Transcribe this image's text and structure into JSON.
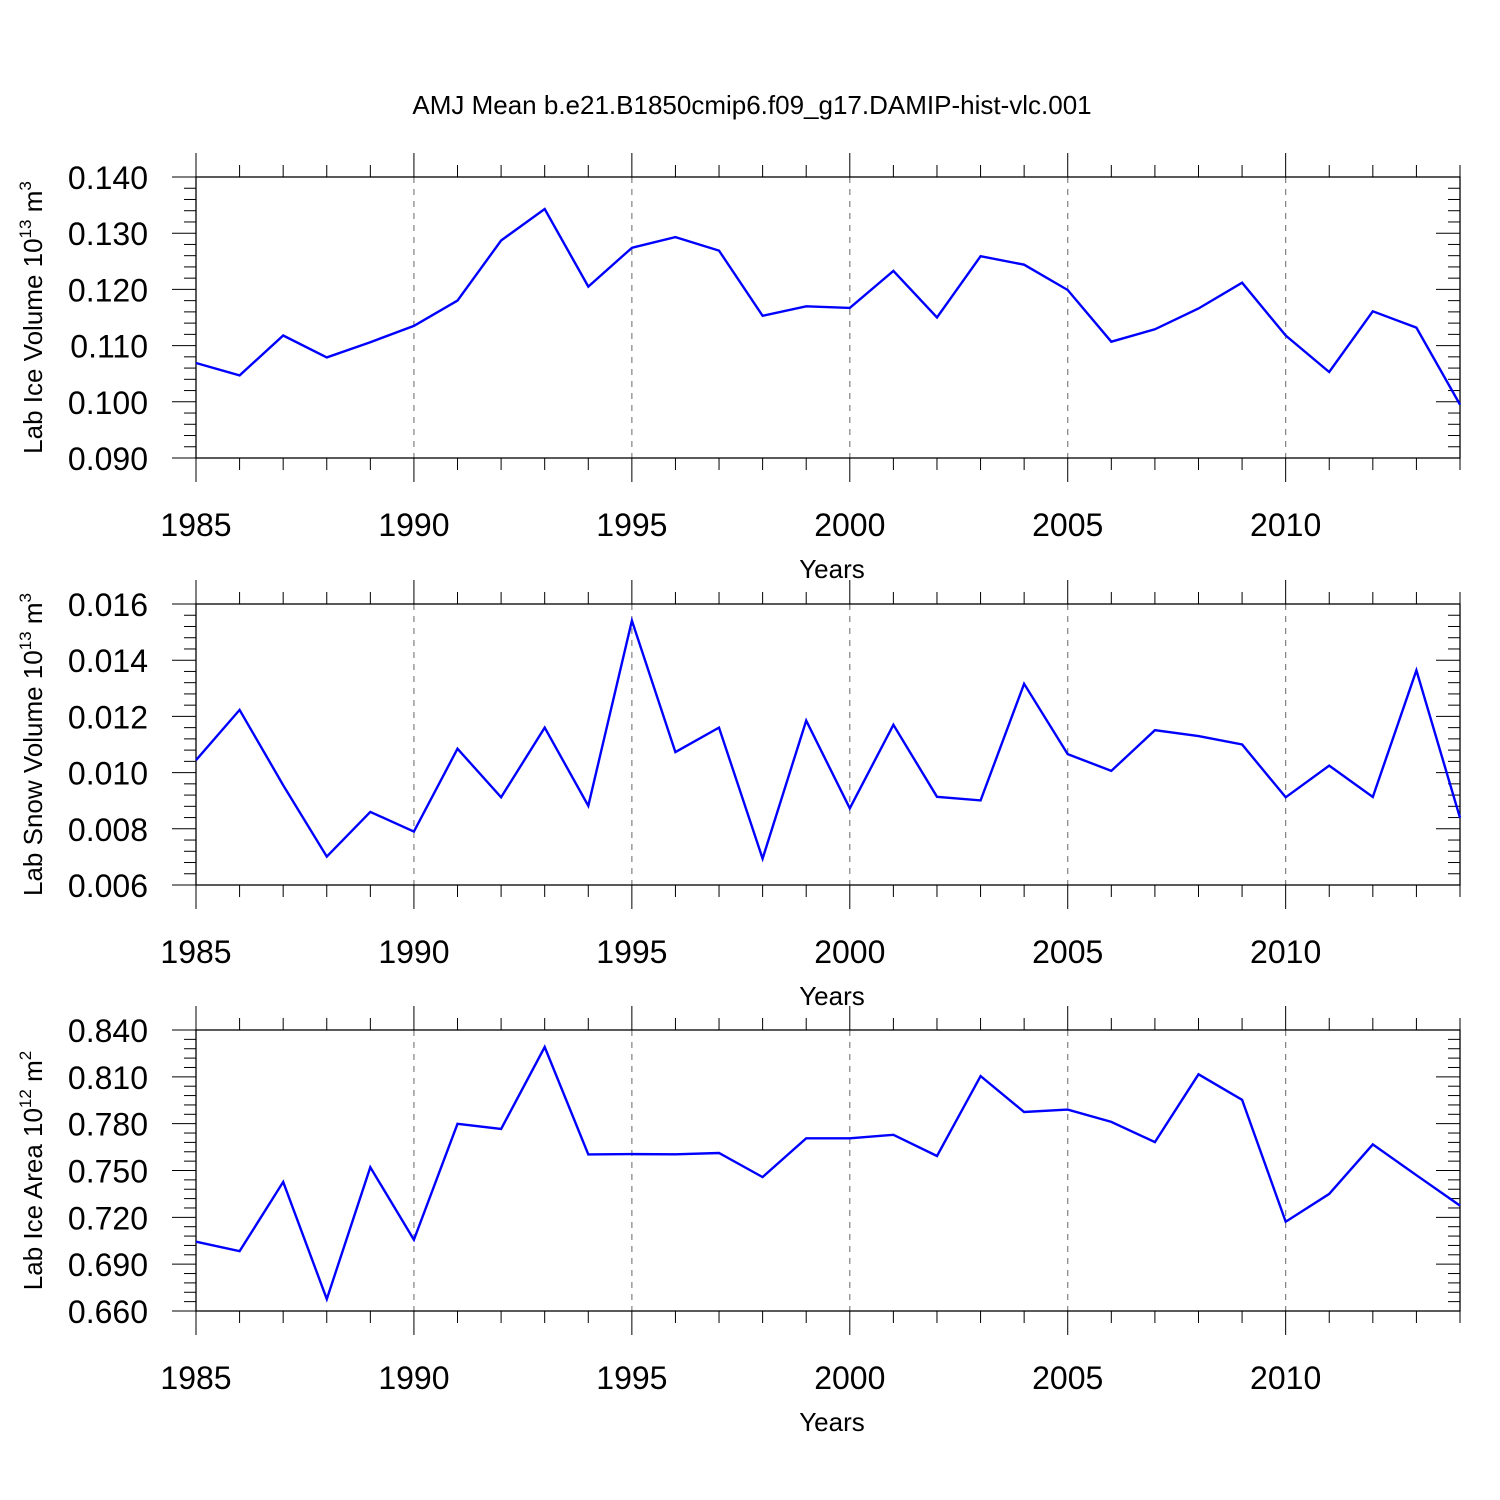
{
  "figure": {
    "title": "AMJ Mean b.e21.B1850cmip6.f09_g17.DAMIP-hist-vlc.001"
  },
  "colors": {
    "line": "#0000ff",
    "axis": "#000000",
    "grid": "#808080"
  },
  "chart_data": [
    {
      "type": "line",
      "ylabel": {
        "main": "Lab Ice Volume 10",
        "exp": "13",
        "unit": " m",
        "unit_exp": "3"
      },
      "xlabel": "Years",
      "xlim": [
        1985,
        2014
      ],
      "ylim": [
        0.09,
        0.14
      ],
      "x_ticks": [
        "1985",
        "1990",
        "1995",
        "2000",
        "2005",
        "2010"
      ],
      "y_ticks": [
        "0.090",
        "0.100",
        "0.110",
        "0.120",
        "0.130",
        "0.140"
      ],
      "x": [
        1985,
        1986,
        1987,
        1988,
        1989,
        1990,
        1991,
        1992,
        1993,
        1994,
        1995,
        1996,
        1997,
        1998,
        1999,
        2000,
        2001,
        2002,
        2003,
        2004,
        2005,
        2006,
        2007,
        2008,
        2009,
        2010,
        2011,
        2012,
        2013,
        2014
      ],
      "values": [
        0.1069,
        0.1047,
        0.1118,
        0.1079,
        0.1106,
        0.1135,
        0.118,
        0.1287,
        0.1343,
        0.1205,
        0.1274,
        0.1293,
        0.1269,
        0.1153,
        0.117,
        0.1167,
        0.1233,
        0.115,
        0.1259,
        0.1244,
        0.1199,
        0.1107,
        0.1129,
        0.1166,
        0.1212,
        0.1118,
        0.1053,
        0.1161,
        0.1132,
        0.0995
      ]
    },
    {
      "type": "line",
      "ylabel": {
        "main": "Lab Snow Volume 10",
        "exp": "13",
        "unit": " m",
        "unit_exp": "3"
      },
      "xlabel": "Years",
      "xlim": [
        1985,
        2014
      ],
      "ylim": [
        0.006,
        0.016
      ],
      "x_ticks": [
        "1985",
        "1990",
        "1995",
        "2000",
        "2005",
        "2010"
      ],
      "y_ticks": [
        "0.006",
        "0.008",
        "0.010",
        "0.012",
        "0.014",
        "0.016"
      ],
      "x": [
        1985,
        1986,
        1987,
        1988,
        1989,
        1990,
        1991,
        1992,
        1993,
        1994,
        1995,
        1996,
        1997,
        1998,
        1999,
        2000,
        2001,
        2002,
        2003,
        2004,
        2005,
        2006,
        2007,
        2008,
        2009,
        2010,
        2011,
        2012,
        2013,
        2014
      ],
      "values": [
        0.01044,
        0.01223,
        0.00955,
        0.00701,
        0.0086,
        0.0079,
        0.01085,
        0.00912,
        0.0116,
        0.00882,
        0.01541,
        0.01073,
        0.0116,
        0.00694,
        0.01185,
        0.00873,
        0.0117,
        0.00914,
        0.00901,
        0.01316,
        0.01066,
        0.01006,
        0.01151,
        0.0113,
        0.011,
        0.00912,
        0.01025,
        0.00913,
        0.01364,
        0.00839
      ]
    },
    {
      "type": "line",
      "ylabel": {
        "main": "Lab Ice Area 10",
        "exp": "12",
        "unit": " m",
        "unit_exp": "2"
      },
      "xlabel": "Years",
      "xlim": [
        1985,
        2014
      ],
      "ylim": [
        0.66,
        0.84
      ],
      "x_ticks": [
        "1985",
        "1990",
        "1995",
        "2000",
        "2005",
        "2010"
      ],
      "y_ticks": [
        "0.660",
        "0.690",
        "0.720",
        "0.750",
        "0.780",
        "0.810",
        "0.840"
      ],
      "x": [
        1985,
        1986,
        1987,
        1988,
        1989,
        1990,
        1991,
        1992,
        1993,
        1994,
        1995,
        1996,
        1997,
        1998,
        1999,
        2000,
        2001,
        2002,
        2003,
        2004,
        2005,
        2006,
        2007,
        2008,
        2009,
        2010,
        2011,
        2012,
        2013,
        2014
      ],
      "values": [
        0.7044,
        0.6983,
        0.7427,
        0.6676,
        0.7521,
        0.7056,
        0.7799,
        0.7766,
        0.8291,
        0.7603,
        0.7605,
        0.7604,
        0.7612,
        0.7458,
        0.7706,
        0.7706,
        0.7729,
        0.7593,
        0.8105,
        0.7875,
        0.789,
        0.7811,
        0.7682,
        0.8116,
        0.7953,
        0.7172,
        0.735,
        0.7667,
        0.747,
        0.7275
      ]
    }
  ]
}
